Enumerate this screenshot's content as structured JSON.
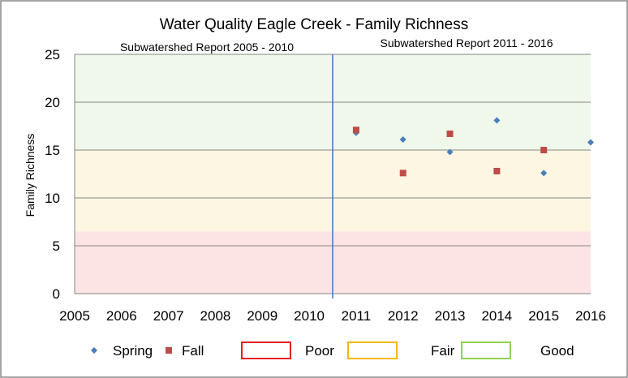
{
  "chart_data": {
    "type": "scatter",
    "title": "Water Quality Eagle Creek - Family Richness",
    "ylabel": "Family Richness",
    "xlabel": "",
    "xlim": [
      2005,
      2016
    ],
    "ylim": [
      0,
      25
    ],
    "x_ticks": [
      2005,
      2006,
      2007,
      2008,
      2009,
      2010,
      2011,
      2012,
      2013,
      2014,
      2015,
      2016
    ],
    "y_ticks": [
      0,
      5,
      10,
      15,
      20,
      25
    ],
    "grid": true,
    "period_annotations": [
      {
        "label": "Subwatershed  Report 2005 - 2010"
      },
      {
        "label": "Subwatershed  Report 2011  - 2016"
      }
    ],
    "divider_x": 2010.5,
    "bands": [
      {
        "name": "Poor",
        "from": 0,
        "to": 6.5,
        "fill": "#fde4e4",
        "border": "#e61e1e"
      },
      {
        "name": "Fair",
        "from": 6.5,
        "to": 15,
        "fill": "#fdf6e2",
        "border": "#f5b800"
      },
      {
        "name": "Good",
        "from": 15,
        "to": 25,
        "fill": "#eff8ea",
        "border": "#92d050"
      }
    ],
    "series": [
      {
        "name": "Spring",
        "marker": "diamond",
        "color": "#4a7ebb",
        "points": [
          [
            2011,
            16.8
          ],
          [
            2012,
            16.1
          ],
          [
            2013,
            14.8
          ],
          [
            2014,
            18.1
          ],
          [
            2015,
            12.6
          ],
          [
            2016,
            15.8
          ]
        ]
      },
      {
        "name": "Fall",
        "marker": "square",
        "color": "#be4b48",
        "points": [
          [
            2011,
            17.1
          ],
          [
            2012,
            12.6
          ],
          [
            2013,
            16.7
          ],
          [
            2014,
            12.8
          ],
          [
            2015,
            15.0
          ]
        ]
      }
    ],
    "legend_placement": "bottom"
  }
}
